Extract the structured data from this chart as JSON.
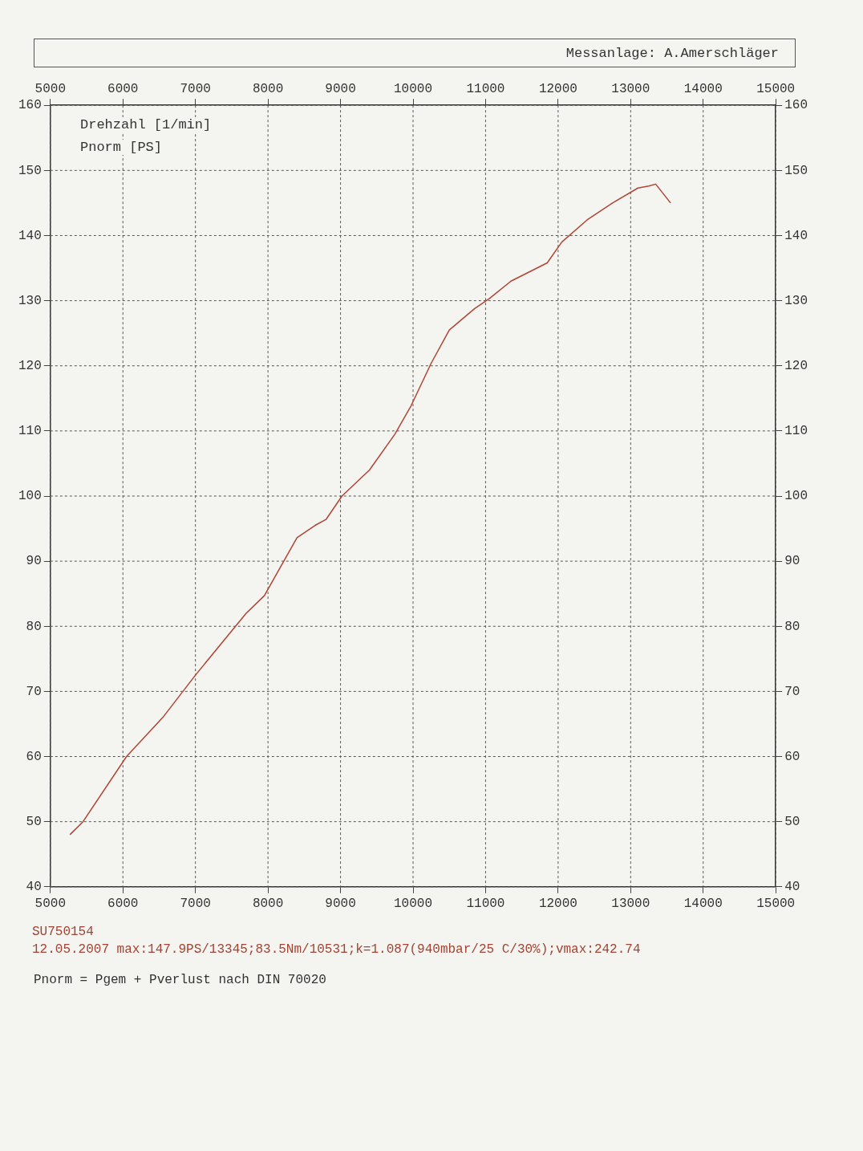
{
  "chart_data": {
    "type": "line",
    "annotations": [
      "Messanlage: A.Amerschläger",
      "Drehzahl [1/min]",
      "Pnorm [PS]",
      "SU750154",
      "12.05.2007",
      "max:147.9PS/13345;83.5Nm/10531;k=1.087(940mbar/25 C/30%);vmax:242.74",
      "Pnorm = Pgem + Pverlust nach DIN 70020"
    ],
    "series": [
      {
        "color": "#b04535",
        "x": [
          5270,
          5450,
          6050,
          6550,
          7000,
          7700,
          7950,
          8400,
          8650,
          8800,
          9020,
          9400,
          9750,
          9970,
          10250,
          10500,
          10850,
          11050,
          11350,
          11850,
          12050,
          12400,
          12750,
          13100,
          13250,
          13345,
          13550
        ],
        "values": [
          48,
          50,
          60,
          66,
          72.5,
          82,
          84.7,
          93.6,
          95.5,
          96.4,
          100,
          104,
          109.5,
          113.8,
          120.4,
          125.5,
          128.8,
          130.3,
          133,
          135.8,
          139,
          142.4,
          145,
          147.3,
          147.6,
          147.9,
          145
        ]
      }
    ],
    "xlim": [
      5000,
      15000
    ],
    "xticks": [
      5000,
      6000,
      7000,
      8000,
      9000,
      10000,
      11000,
      12000,
      13000,
      14000,
      15000
    ],
    "x2lim": [
      5000,
      15000
    ],
    "x2ticks": [
      5000,
      6000,
      7000,
      8000,
      9000,
      10000,
      11000,
      12000,
      13000,
      14000,
      15000
    ],
    "ylim": [
      40,
      160
    ],
    "yticks": [
      40,
      50,
      60,
      70,
      80,
      90,
      100,
      110,
      120,
      130,
      140,
      150,
      160
    ],
    "y2lim": [
      40,
      160
    ],
    "y2ticks": [
      40,
      50,
      60,
      70,
      80,
      90,
      100,
      110,
      120,
      130,
      140,
      150,
      160
    ],
    "grid": true,
    "legend": false,
    "marker": "none",
    "line_style": "solid"
  }
}
